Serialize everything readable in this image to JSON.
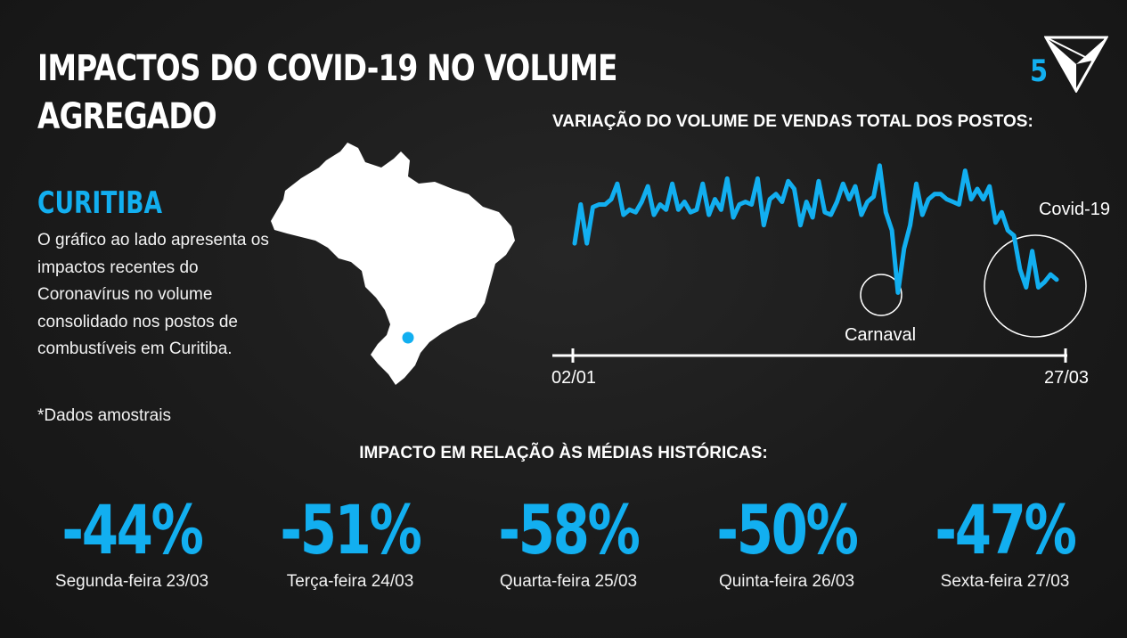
{
  "title": {
    "line1": "IMPACTOS DO COVID-19 NO VOLUME",
    "line2": "AGREGADO"
  },
  "page_number": "5",
  "city": "CURITIBA",
  "description": "O gráfico ao lado apresenta os impactos recentes do Coronavírus no volume consolidado nos postos de combustíveis em Curitiba.",
  "footnote": "*Dados amostrais",
  "impact_title": "IMPACTO EM RELAÇÃO ÀS MÉDIAS HISTÓRICAS:",
  "stats": [
    {
      "value": "-44%",
      "day": "Segunda-feira 23/03"
    },
    {
      "value": "-51%",
      "day": "Terça-feira 24/03"
    },
    {
      "value": "-58%",
      "day": "Quarta-feira 25/03"
    },
    {
      "value": "-50%",
      "day": "Quinta-feira 26/03"
    },
    {
      "value": "-47%",
      "day": "Sexta-feira 27/03"
    }
  ],
  "colors": {
    "accent": "#12aff0",
    "background": "#1b1b1b",
    "text": "#ffffff"
  },
  "icons": {
    "logo": "triangle-logo-icon",
    "map": "brazil-map-icon",
    "location": "location-dot-icon"
  },
  "chart_data": {
    "type": "line",
    "title": "VARIAÇÃO DO VOLUME DE VENDAS TOTAL DOS POSTOS:",
    "x_start_label": "02/01",
    "x_end_label": "27/03",
    "annotations": [
      "Carnaval",
      "Covid-19"
    ],
    "series": [
      {
        "values": [
          63,
          78,
          63,
          77,
          78,
          78,
          80,
          86,
          74,
          76,
          75,
          79,
          85,
          74,
          78,
          76,
          86,
          76,
          79,
          75,
          76,
          86,
          74,
          80,
          76,
          88,
          73,
          78,
          79,
          78,
          88,
          70,
          80,
          82,
          79,
          87,
          84,
          70,
          79,
          73,
          87,
          75,
          74,
          79,
          86,
          80,
          85,
          74,
          79,
          81,
          93,
          75,
          68,
          44,
          61,
          70,
          86,
          74,
          80,
          82,
          82,
          80,
          79,
          78,
          91,
          80,
          84,
          80,
          85,
          71,
          75,
          68,
          66,
          53,
          46,
          60,
          46,
          48,
          51,
          49
        ]
      }
    ],
    "grid": false,
    "legend": "none"
  }
}
